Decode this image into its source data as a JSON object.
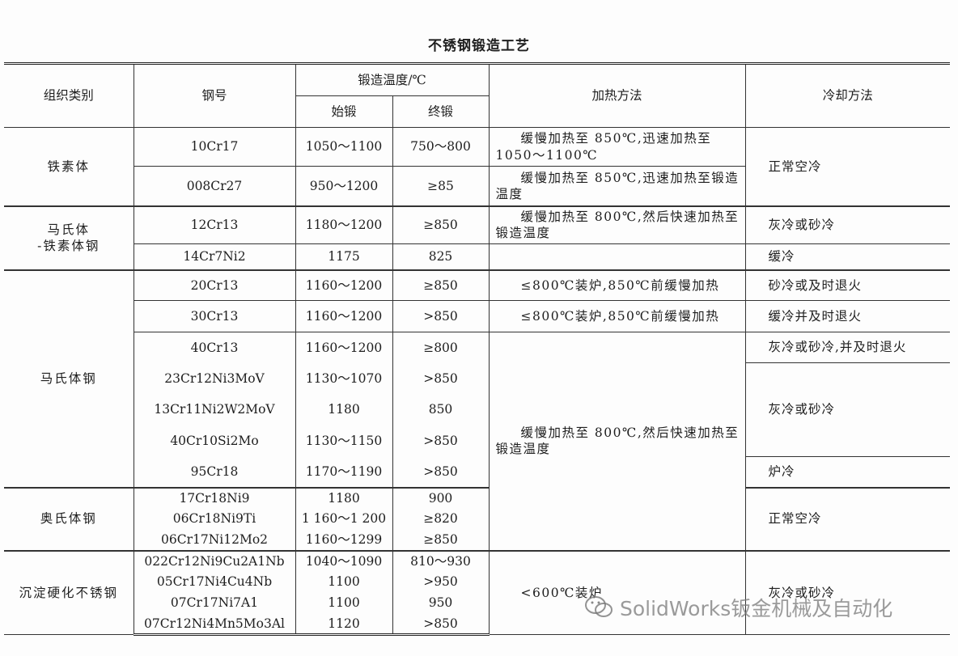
{
  "title": "不锈钢锻造工艺",
  "header": {
    "category": "组织类别",
    "grade": "钢号",
    "forging_temp": "锻造温度/℃",
    "start": "始锻",
    "finish": "终锻",
    "heating": "加热方法",
    "cooling": "冷却方法"
  },
  "rows": [
    {
      "grade": "10Cr17",
      "start": "1050～1100",
      "finish": "750～800"
    },
    {
      "grade": "008Cr27",
      "start": "950～1200",
      "finish": "≥85"
    },
    {
      "grade": "12Cr13",
      "start": "1180～1200",
      "finish": "≥850"
    },
    {
      "grade": "14Cr7Ni2",
      "start": "1175",
      "finish": "825"
    },
    {
      "grade": "20Cr13",
      "start": "1160～1200",
      "finish": "≥850"
    },
    {
      "grade": "30Cr13",
      "start": "1160～1200",
      "finish": ">850"
    },
    {
      "grade": "40Cr13",
      "start": "1160～1200",
      "finish": "≥800"
    },
    {
      "grade": "23Cr12Ni3MoV",
      "start": "1130～1070",
      "finish": ">850"
    },
    {
      "grade": "13Cr11Ni2W2MoV",
      "start": "1180",
      "finish": "850"
    },
    {
      "grade": "40Cr10Si2Mo",
      "start": "1130～1150",
      "finish": ">850"
    },
    {
      "grade": "95Cr18",
      "start": "1170～1190",
      "finish": ">850"
    },
    {
      "grade": "17Cr18Ni9",
      "start": "1180",
      "finish": "900"
    },
    {
      "grade": "06Cr18Ni9Ti",
      "start": "1 160～1 200",
      "finish": "≥820"
    },
    {
      "grade": "06Cr17Ni12Mo2",
      "start": "1160～1299",
      "finish": "≥850"
    },
    {
      "grade": "022Cr12Ni9Cu2A1Nb",
      "start": "1040～1090",
      "finish": "810～930"
    },
    {
      "grade": "05Cr17Ni4Cu4Nb",
      "start": "1100",
      "finish": ">950"
    },
    {
      "grade": "07Cr17Ni7A1",
      "start": "1100",
      "finish": "950"
    },
    {
      "grade": "07Cr12Ni4Mn5Mo3Al",
      "start": "1120",
      "finish": ">850"
    }
  ],
  "categories": [
    {
      "label": "铁素体",
      "row": 0,
      "span": 2
    },
    {
      "label": "马氏体\n-铁素体钢",
      "row": 2,
      "span": 2
    },
    {
      "label": "马氏体钢",
      "row": 4,
      "span": 7
    },
    {
      "label": "奥氏体钢",
      "row": 11,
      "span": 3
    },
    {
      "label": "沉淀硬化不锈钢",
      "row": 14,
      "span": 4
    }
  ],
  "heating": [
    {
      "label": "缓慢加热至 850℃,迅速加热至1050～1100℃",
      "row": 0,
      "span": 1
    },
    {
      "label": "缓慢加热至 850℃,迅速加热至锻造温度",
      "row": 1,
      "span": 1
    },
    {
      "label": "缓慢加热至 800℃,然后快速加热至锻造温度",
      "row": 2,
      "span": 1
    },
    {
      "label": "",
      "row": 3,
      "span": 1
    },
    {
      "label": "≤800℃装炉,850℃前缓慢加热",
      "row": 4,
      "span": 1
    },
    {
      "label": "≤800℃装炉,850℃前缓慢加热",
      "row": 5,
      "span": 1
    },
    {
      "label": "缓慢加热至 800℃,然后快速加热至锻造温度",
      "row": 6,
      "span": 8
    },
    {
      "label": "<600℃装炉",
      "row": 14,
      "span": 4
    }
  ],
  "cooling": [
    {
      "label": "正常空冷",
      "row": 0,
      "span": 2
    },
    {
      "label": "灰冷或砂冷",
      "row": 2,
      "span": 1
    },
    {
      "label": "缓冷",
      "row": 3,
      "span": 1
    },
    {
      "label": "砂冷或及时退火",
      "row": 4,
      "span": 1
    },
    {
      "label": "缓冷并及时退火",
      "row": 5,
      "span": 1
    },
    {
      "label": "灰冷或砂冷,并及时退火",
      "row": 6,
      "span": 1
    },
    {
      "label": "灰冷或砂冷",
      "row": 7,
      "span": 3
    },
    {
      "label": "炉冷",
      "row": 10,
      "span": 1
    },
    {
      "label": "正常空冷",
      "row": 11,
      "span": 3
    },
    {
      "label": "灰冷或砂冷",
      "row": 14,
      "span": 4
    }
  ],
  "watermark": {
    "icon": "wechat-icon",
    "text": "SolidWorks钣金机械及自动化"
  }
}
